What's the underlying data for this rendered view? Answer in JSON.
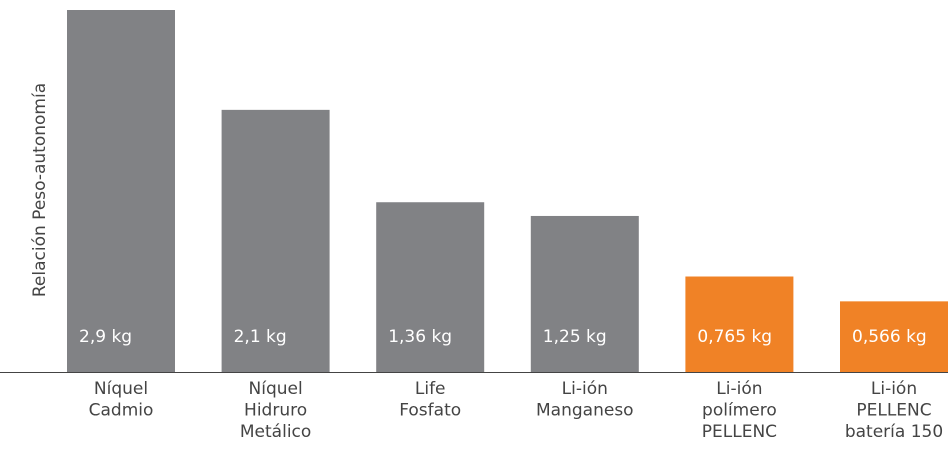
{
  "chart_data": {
    "type": "bar",
    "y_label": "Relación Peso-autonomía",
    "categories": [
      [
        "Níquel",
        "Cadmio"
      ],
      [
        "Níquel",
        "Hidruro",
        "Metálico"
      ],
      [
        "Life",
        "Fosfato"
      ],
      [
        "Li-ión",
        "Manganeso"
      ],
      [
        "Li-ión",
        "polímero",
        "PELLENC"
      ],
      [
        "Li-ión",
        "PELLENC",
        "batería 150"
      ]
    ],
    "values": [
      2.9,
      2.1,
      1.36,
      1.25,
      0.765,
      0.566
    ],
    "value_labels": [
      "2,9 kg",
      "2,1 kg",
      "1,36 kg",
      "1,25 kg",
      "0,765 kg",
      "0,566 kg"
    ],
    "colors": [
      "#818285",
      "#818285",
      "#818285",
      "#818285",
      "#f08226",
      "#f08226"
    ]
  }
}
